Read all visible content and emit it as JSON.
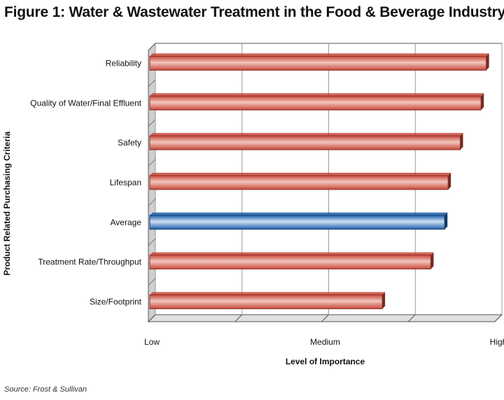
{
  "chart_data": {
    "type": "bar",
    "orientation": "horizontal",
    "title": "Figure 1: Water & Wastewater Treatment in the Food & Beverage Industry",
    "xlabel": "Level of Importance",
    "ylabel": "Product Related Purchasing Criteria",
    "categories": [
      "Reliability",
      "Quality of Water/Final Effluent",
      "Safety",
      "Lifespan",
      "Average",
      "Treatment Rate/Throughput",
      "Size/Footprint"
    ],
    "values": [
      2.95,
      2.92,
      2.8,
      2.73,
      2.71,
      2.63,
      2.35
    ],
    "highlight_category": "Average",
    "xlim": [
      1,
      3
    ],
    "x_tick_values": [
      1,
      1.5,
      2,
      2.5,
      3
    ],
    "x_tick_labels": [
      "Low",
      "",
      "Medium",
      "",
      "High"
    ],
    "grid": true,
    "source": "Source: Frost & Sullivan",
    "colors": {
      "bar": "#c8473a",
      "bar_light": "#f1c6bd",
      "highlight": "#1c5ea8",
      "highlight_light": "#cfe0f3",
      "grid": "#9a9a9a",
      "wall": "#f2f2f2"
    }
  }
}
